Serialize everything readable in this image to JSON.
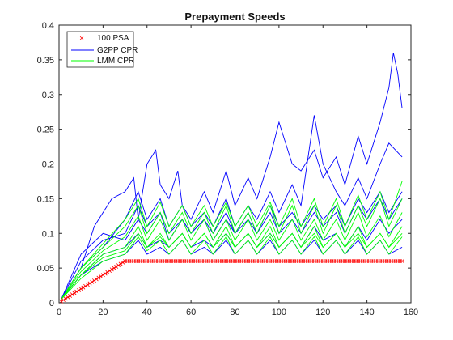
{
  "chart_data": {
    "type": "line",
    "title": "Prepayment Speeds",
    "xlabel": "",
    "ylabel": "",
    "xlim": [
      0,
      160
    ],
    "ylim": [
      0,
      0.4
    ],
    "xticks": [
      0,
      20,
      40,
      60,
      80,
      100,
      120,
      140,
      160
    ],
    "yticks": [
      0,
      0.05,
      0.1,
      0.15,
      0.2,
      0.25,
      0.3,
      0.35,
      0.4
    ],
    "ytick_labels": [
      "0",
      "0.05",
      "0.1",
      "0.15",
      "0.2",
      "0.25",
      "0.3",
      "0.35",
      "0.4"
    ],
    "grid": false,
    "legend_position": "top-left",
    "series": [
      {
        "name": "100 PSA",
        "color": "#ff0000",
        "marker": "x",
        "ramp_to": 30,
        "plateau": 0.06,
        "x_end": 156
      },
      {
        "name": "G2PP CPR",
        "color": "#0000ff",
        "marker": "line",
        "paths": [
          {
            "x": [
              1,
              10,
              20,
              30,
              36,
              40,
              46,
              50,
              56,
              60,
              66,
              70,
              76,
              80,
              86,
              90,
              96,
              100,
              106,
              110,
              116,
              120,
              126,
              130,
              136,
              140,
              146,
              150,
              156
            ],
            "y": [
              0.005,
              0.06,
              0.09,
              0.1,
              0.14,
              0.11,
              0.13,
              0.1,
              0.12,
              0.1,
              0.12,
              0.1,
              0.13,
              0.1,
              0.13,
              0.1,
              0.14,
              0.11,
              0.13,
              0.11,
              0.14,
              0.12,
              0.14,
              0.11,
              0.15,
              0.13,
              0.16,
              0.13,
              0.16
            ]
          },
          {
            "x": [
              1,
              10,
              16,
              20,
              24,
              30,
              34,
              36,
              40,
              44,
              46,
              50,
              54,
              56,
              60,
              66,
              70,
              76,
              80,
              86,
              90,
              96,
              100,
              106,
              110,
              116,
              120,
              126,
              130,
              136,
              140,
              146,
              150,
              152,
              154,
              156
            ],
            "y": [
              0.005,
              0.05,
              0.11,
              0.13,
              0.15,
              0.16,
              0.18,
              0.12,
              0.2,
              0.22,
              0.17,
              0.15,
              0.19,
              0.14,
              0.12,
              0.16,
              0.13,
              0.19,
              0.14,
              0.18,
              0.15,
              0.21,
              0.26,
              0.2,
              0.19,
              0.22,
              0.18,
              0.21,
              0.17,
              0.24,
              0.2,
              0.26,
              0.31,
              0.36,
              0.33,
              0.28
            ]
          },
          {
            "x": [
              1,
              10,
              20,
              30,
              36,
              40,
              46,
              50,
              56,
              60,
              66,
              70,
              76,
              80,
              86,
              90,
              96,
              100,
              106,
              110,
              116,
              120,
              126,
              130,
              136,
              140,
              146,
              150,
              156
            ],
            "y": [
              0.005,
              0.04,
              0.07,
              0.08,
              0.1,
              0.08,
              0.09,
              0.08,
              0.1,
              0.08,
              0.09,
              0.08,
              0.1,
              0.08,
              0.1,
              0.08,
              0.1,
              0.08,
              0.1,
              0.08,
              0.11,
              0.09,
              0.1,
              0.08,
              0.11,
              0.09,
              0.12,
              0.1,
              0.12
            ]
          },
          {
            "x": [
              1,
              10,
              20,
              30,
              36,
              40,
              46,
              50,
              56,
              60,
              66,
              70,
              76,
              80,
              86,
              90,
              96,
              100,
              106,
              110,
              116,
              120,
              126,
              130,
              136,
              140,
              146,
              150,
              156
            ],
            "y": [
              0.005,
              0.05,
              0.08,
              0.12,
              0.16,
              0.12,
              0.15,
              0.11,
              0.14,
              0.11,
              0.13,
              0.11,
              0.15,
              0.11,
              0.14,
              0.12,
              0.16,
              0.13,
              0.17,
              0.14,
              0.27,
              0.2,
              0.16,
              0.14,
              0.18,
              0.15,
              0.2,
              0.23,
              0.21
            ]
          },
          {
            "x": [
              1,
              10,
              20,
              30,
              36,
              40,
              46,
              50,
              56,
              60,
              66,
              70,
              76,
              80,
              86,
              90,
              96,
              100,
              106,
              110,
              116,
              120,
              126,
              130,
              136,
              140,
              146,
              150,
              156
            ],
            "y": [
              0.005,
              0.04,
              0.06,
              0.07,
              0.09,
              0.07,
              0.08,
              0.07,
              0.09,
              0.07,
              0.08,
              0.07,
              0.09,
              0.07,
              0.09,
              0.07,
              0.09,
              0.07,
              0.09,
              0.07,
              0.09,
              0.07,
              0.09,
              0.07,
              0.09,
              0.07,
              0.09,
              0.07,
              0.08
            ]
          },
          {
            "x": [
              1,
              10,
              20,
              30,
              36,
              40,
              46,
              50,
              56,
              60,
              66,
              70,
              76,
              80,
              86,
              90,
              96,
              100,
              106,
              110,
              116,
              120,
              126,
              130,
              136,
              140,
              146,
              150,
              156
            ],
            "y": [
              0.005,
              0.07,
              0.1,
              0.09,
              0.12,
              0.1,
              0.13,
              0.09,
              0.12,
              0.1,
              0.12,
              0.09,
              0.12,
              0.1,
              0.12,
              0.1,
              0.13,
              0.1,
              0.12,
              0.1,
              0.13,
              0.11,
              0.13,
              0.1,
              0.14,
              0.12,
              0.15,
              0.12,
              0.15
            ]
          }
        ]
      },
      {
        "name": "LMM CPR",
        "color": "#00ff00",
        "marker": "line",
        "paths": [
          {
            "x": [
              1,
              10,
              20,
              30,
              36,
              40,
              46,
              50,
              56,
              60,
              66,
              70,
              76,
              80,
              86,
              90,
              96,
              100,
              106,
              110,
              116,
              120,
              126,
              130,
              136,
              140,
              146,
              150,
              156
            ],
            "y": [
              0.005,
              0.05,
              0.08,
              0.11,
              0.14,
              0.1,
              0.13,
              0.1,
              0.13,
              0.1,
              0.13,
              0.1,
              0.14,
              0.1,
              0.13,
              0.1,
              0.14,
              0.1,
              0.14,
              0.1,
              0.14,
              0.1,
              0.14,
              0.1,
              0.14,
              0.11,
              0.15,
              0.11,
              0.15
            ]
          },
          {
            "x": [
              1,
              10,
              20,
              30,
              36,
              40,
              46,
              50,
              56,
              60,
              66,
              70,
              76,
              80,
              86,
              90,
              96,
              100,
              106,
              110,
              116,
              120,
              126,
              130,
              136,
              140,
              146,
              150,
              156
            ],
            "y": [
              0.005,
              0.04,
              0.07,
              0.08,
              0.11,
              0.08,
              0.1,
              0.08,
              0.1,
              0.08,
              0.1,
              0.08,
              0.11,
              0.08,
              0.1,
              0.08,
              0.11,
              0.08,
              0.1,
              0.08,
              0.11,
              0.08,
              0.1,
              0.08,
              0.11,
              0.08,
              0.1,
              0.08,
              0.11
            ]
          },
          {
            "x": [
              1,
              10,
              20,
              30,
              36,
              40,
              46,
              50,
              56,
              60,
              66,
              70,
              76,
              80,
              86,
              90,
              96,
              100,
              106,
              110,
              116,
              120,
              126,
              130,
              136,
              140,
              146,
              150,
              156
            ],
            "y": [
              0.005,
              0.045,
              0.075,
              0.095,
              0.125,
              0.09,
              0.12,
              0.09,
              0.12,
              0.09,
              0.12,
              0.09,
              0.12,
              0.09,
              0.12,
              0.09,
              0.12,
              0.09,
              0.12,
              0.09,
              0.12,
              0.09,
              0.12,
              0.09,
              0.13,
              0.095,
              0.125,
              0.095,
              0.13
            ]
          },
          {
            "x": [
              1,
              10,
              20,
              30,
              36,
              40,
              46,
              50,
              56,
              60,
              66,
              70,
              76,
              80,
              86,
              90,
              96,
              100,
              106,
              110,
              116,
              120,
              126,
              130,
              136,
              140,
              146,
              150,
              156
            ],
            "y": [
              0.005,
              0.035,
              0.06,
              0.07,
              0.095,
              0.075,
              0.09,
              0.07,
              0.09,
              0.07,
              0.09,
              0.07,
              0.095,
              0.07,
              0.09,
              0.07,
              0.095,
              0.07,
              0.09,
              0.07,
              0.095,
              0.07,
              0.09,
              0.07,
              0.095,
              0.07,
              0.09,
              0.07,
              0.095
            ]
          },
          {
            "x": [
              1,
              10,
              20,
              30,
              36,
              40,
              46,
              50,
              56,
              60,
              66,
              70,
              76,
              80,
              86,
              90,
              96,
              100,
              106,
              110,
              116,
              120,
              126,
              130,
              136,
              140,
              146,
              150,
              156
            ],
            "y": [
              0.005,
              0.05,
              0.085,
              0.12,
              0.15,
              0.11,
              0.145,
              0.11,
              0.14,
              0.11,
              0.14,
              0.11,
              0.145,
              0.11,
              0.14,
              0.11,
              0.145,
              0.11,
              0.15,
              0.11,
              0.15,
              0.11,
              0.15,
              0.11,
              0.155,
              0.12,
              0.16,
              0.12,
              0.175
            ]
          },
          {
            "x": [
              1,
              10,
              20,
              30,
              36,
              40,
              46,
              50,
              56,
              60,
              66,
              70,
              76,
              80,
              86,
              90,
              96,
              100,
              106,
              110,
              116,
              120,
              126,
              130,
              136,
              140,
              146,
              150,
              156
            ],
            "y": [
              0.005,
              0.04,
              0.065,
              0.075,
              0.1,
              0.08,
              0.095,
              0.08,
              0.1,
              0.08,
              0.1,
              0.08,
              0.1,
              0.08,
              0.1,
              0.08,
              0.1,
              0.08,
              0.1,
              0.08,
              0.1,
              0.08,
              0.1,
              0.08,
              0.1,
              0.08,
              0.1,
              0.08,
              0.1
            ]
          }
        ]
      }
    ]
  }
}
